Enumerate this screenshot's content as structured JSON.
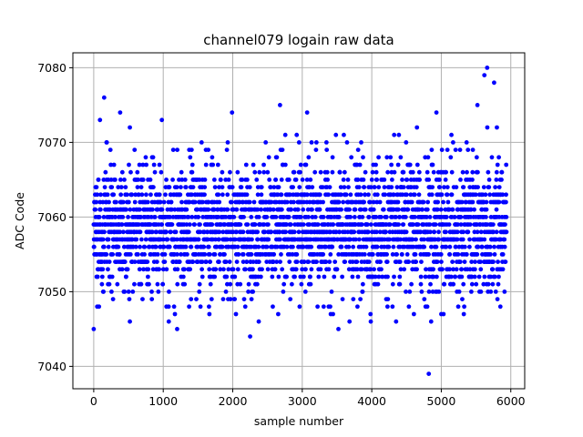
{
  "chart_data": {
    "type": "scatter",
    "title": "channel079 logain raw data",
    "xlabel": "sample number",
    "ylabel": "ADC Code",
    "xlim": [
      -300,
      6200
    ],
    "ylim": [
      7037,
      7082
    ],
    "xticks": [
      0,
      1000,
      2000,
      3000,
      4000,
      5000,
      6000
    ],
    "yticks": [
      7040,
      7050,
      7060,
      7070,
      7080
    ],
    "grid": true,
    "marker_color": "#0000ff",
    "axis_color": "#000000",
    "grid_color": "#b0b0b0",
    "x_range": [
      0,
      5939
    ],
    "y_center": 7058,
    "y_typical_range": [
      7049,
      7069
    ],
    "notable_points": [
      {
        "x": 0,
        "y": 7045
      },
      {
        "x": 50,
        "y": 7048
      },
      {
        "x": 90,
        "y": 7073
      },
      {
        "x": 150,
        "y": 7076
      },
      {
        "x": 380,
        "y": 7074
      },
      {
        "x": 520,
        "y": 7046
      },
      {
        "x": 980,
        "y": 7073
      },
      {
        "x": 1080,
        "y": 7046
      },
      {
        "x": 1200,
        "y": 7045
      },
      {
        "x": 1990,
        "y": 7074
      },
      {
        "x": 2250,
        "y": 7044
      },
      {
        "x": 2680,
        "y": 7075
      },
      {
        "x": 3070,
        "y": 7074
      },
      {
        "x": 3520,
        "y": 7045
      },
      {
        "x": 3680,
        "y": 7046
      },
      {
        "x": 4350,
        "y": 7046
      },
      {
        "x": 4650,
        "y": 7072
      },
      {
        "x": 4820,
        "y": 7039
      },
      {
        "x": 4930,
        "y": 7074
      },
      {
        "x": 5000,
        "y": 7047
      },
      {
        "x": 5520,
        "y": 7075
      },
      {
        "x": 5620,
        "y": 7079
      },
      {
        "x": 5660,
        "y": 7080
      },
      {
        "x": 5760,
        "y": 7078
      },
      {
        "x": 5850,
        "y": 7048
      }
    ]
  }
}
